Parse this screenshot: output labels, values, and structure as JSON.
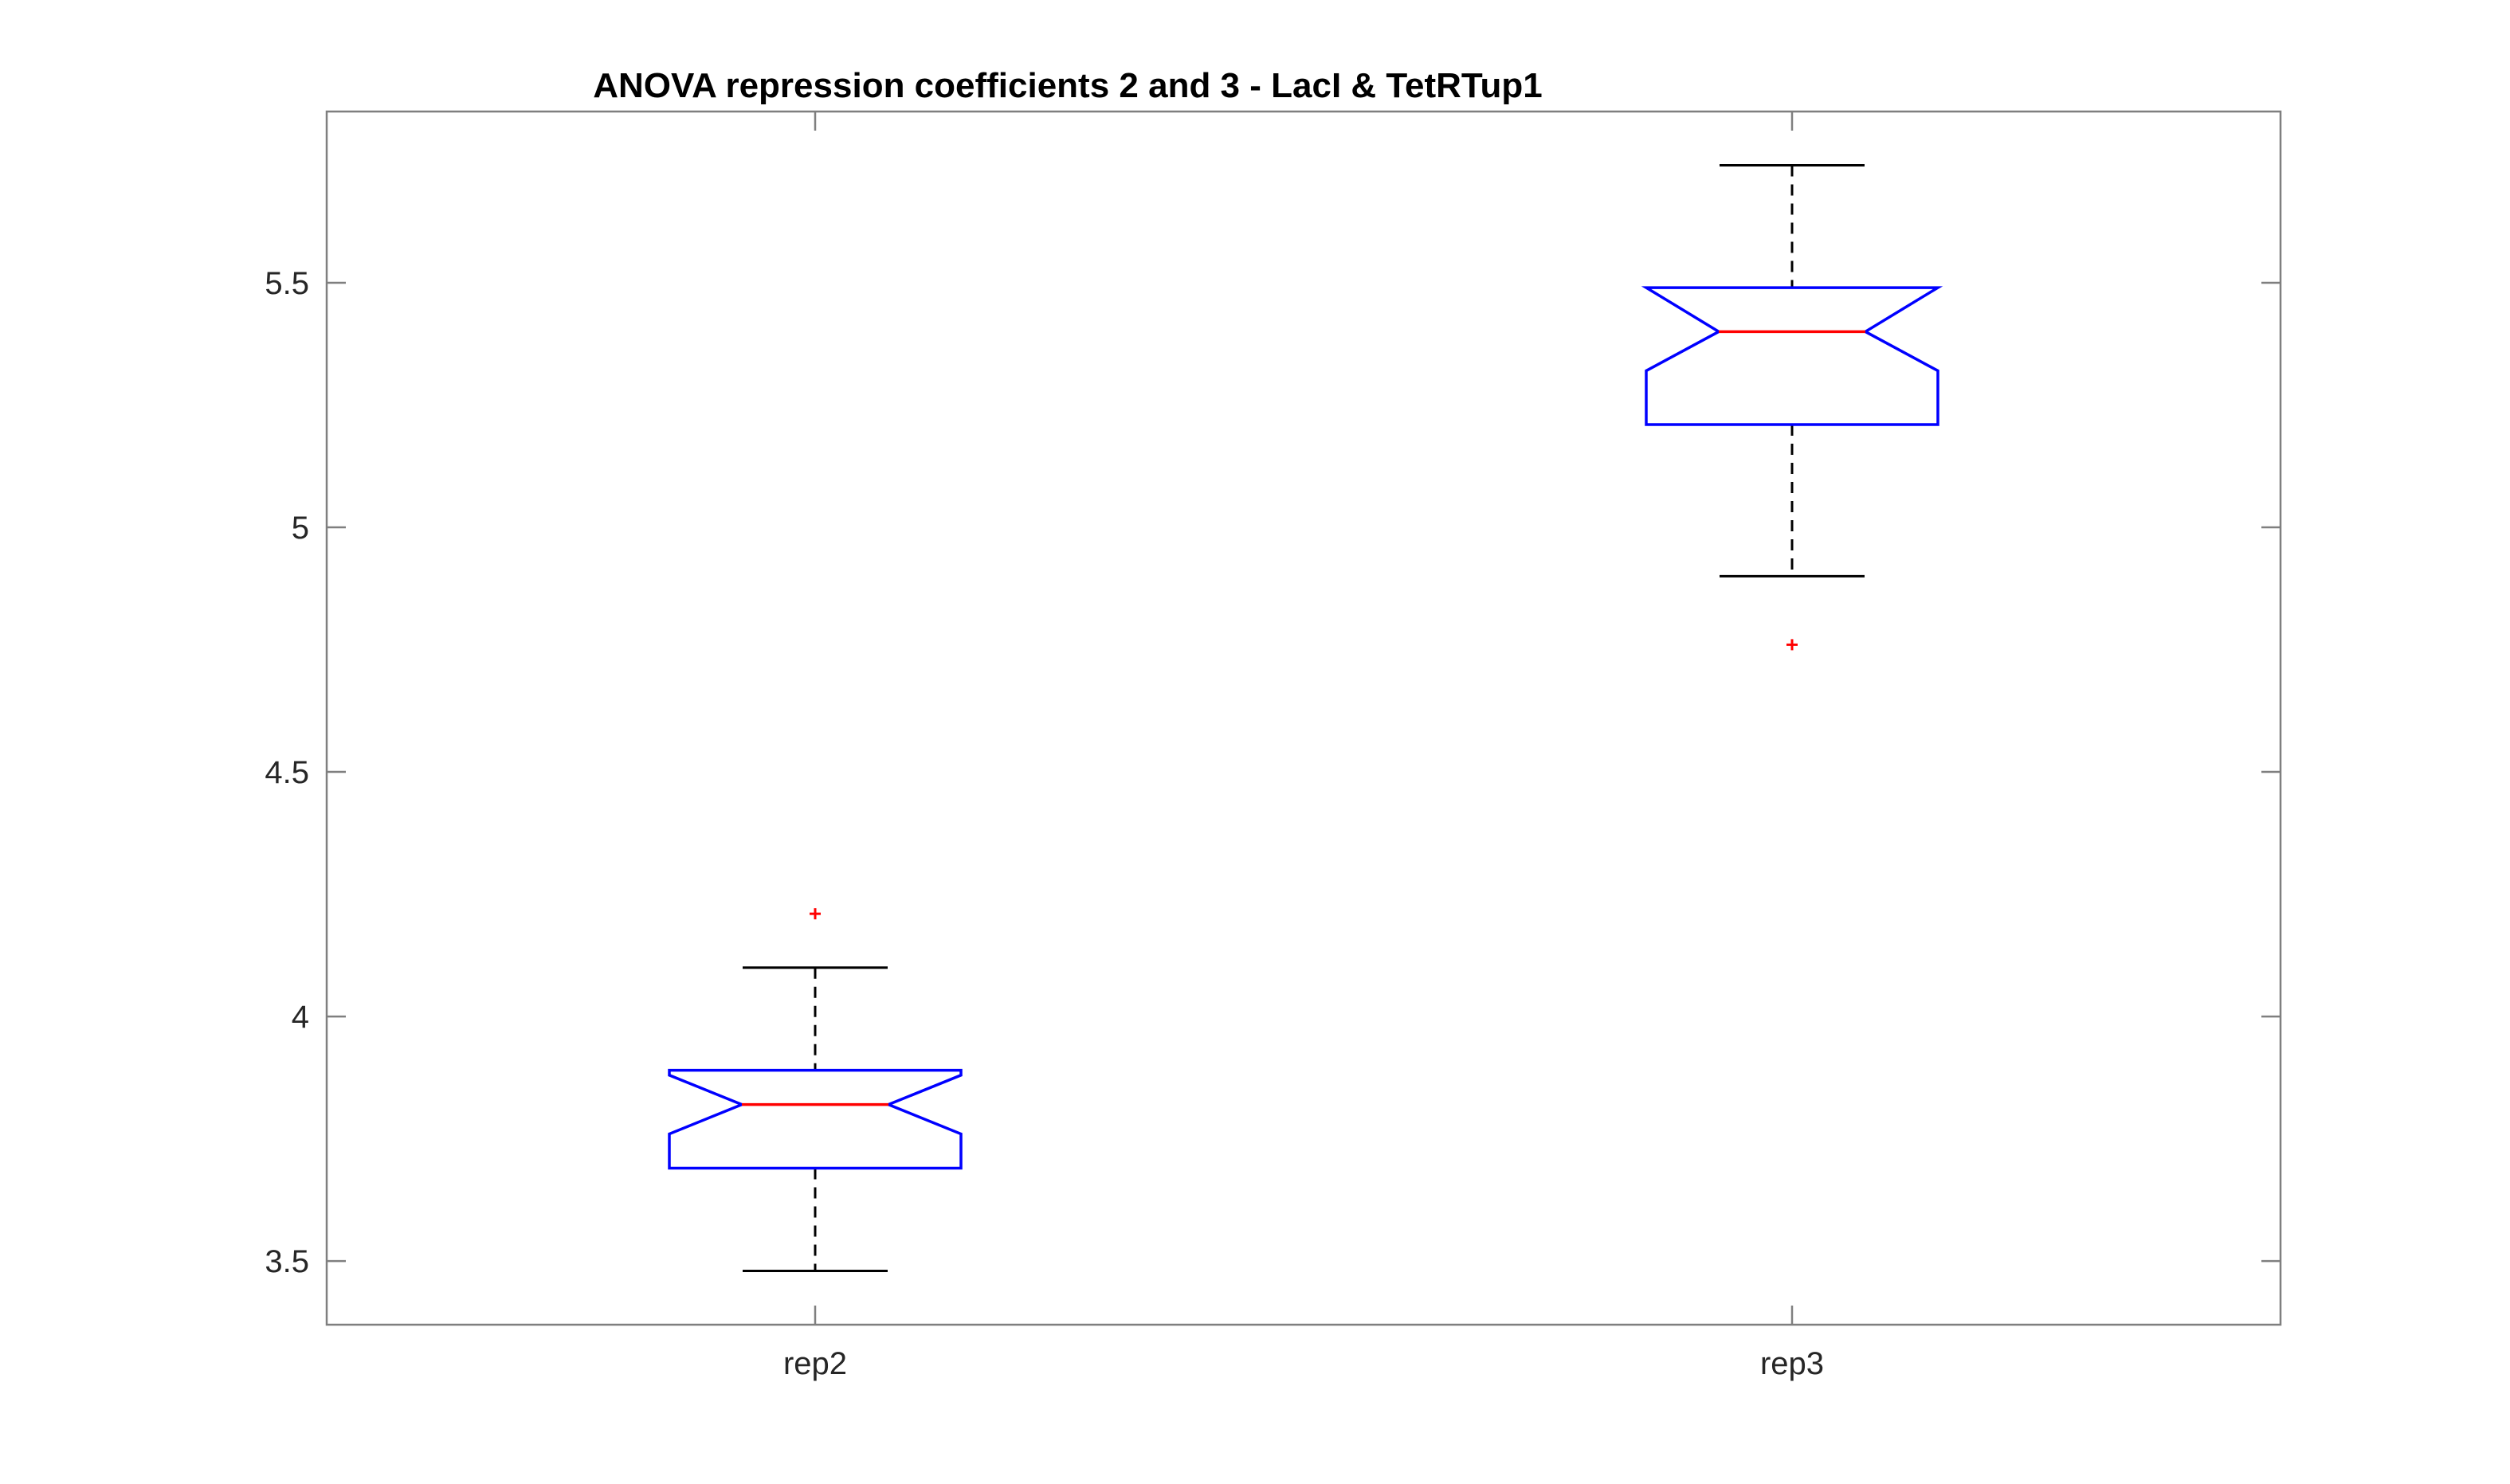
{
  "chart_data": {
    "type": "boxplot",
    "title": "ANOVA repression coefficients 2 and 3 - LacI & TetRTup1",
    "xlabel": "",
    "ylabel": "",
    "categories": [
      "rep2",
      "rep3"
    ],
    "ylim": [
      3.37,
      5.85
    ],
    "yticks": [
      3.5,
      4,
      4.5,
      5,
      5.5
    ],
    "ytick_labels": [
      "3.5",
      "4",
      "4.5",
      "5",
      "5.5"
    ],
    "notched": true,
    "grid": false,
    "boxes": [
      {
        "category": "rep2",
        "whisker_low": 3.48,
        "q1": 3.69,
        "notch_low": 3.76,
        "median": 3.82,
        "notch_high": 3.88,
        "q3": 3.89,
        "whisker_high": 4.1,
        "outliers": [
          4.21
        ]
      },
      {
        "category": "rep3",
        "whisker_low": 4.9,
        "q1": 5.21,
        "notch_low": 5.32,
        "median": 5.4,
        "notch_high": 5.49,
        "q3": 5.49,
        "whisker_high": 5.74,
        "outliers": [
          4.76
        ]
      }
    ],
    "colors": {
      "box": "#0000ff",
      "median": "#ff0000",
      "whisker": "#000000",
      "outlier": "#ff0000",
      "axes": "#7f7f7f"
    }
  }
}
